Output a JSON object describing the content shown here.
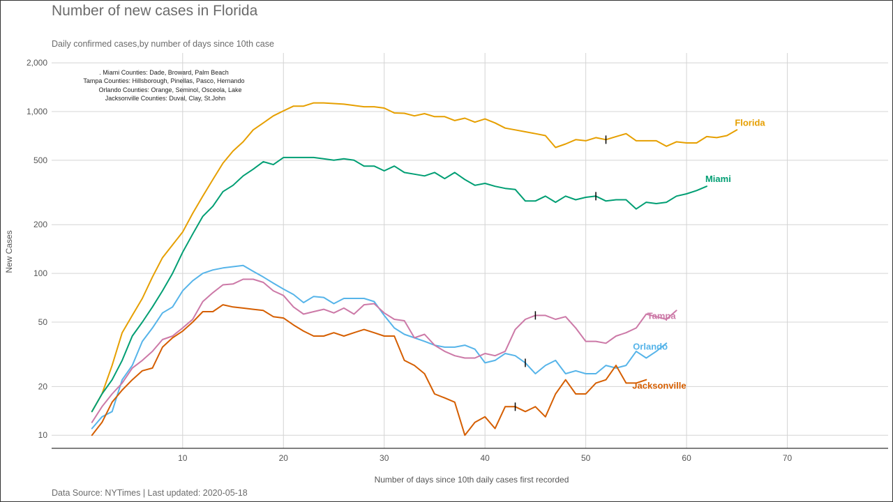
{
  "title": "Number of new cases in Florida",
  "subtitle": "Daily confirmed cases,by number of days since 10th case",
  "caption": "Data Source: NYTimes   |  Last updated: 2020-05-18",
  "colors": {
    "florida": "#E69F00",
    "miami": "#009E73",
    "orlando": "#56B4E9",
    "tampa": "#CC79A7",
    "jacksonville": "#D55E00",
    "grid": "#d4d4d4",
    "marker": "#000000"
  },
  "notes": [
    ".    Miami Counties: Dade, Broward, Palm Beach",
    "Tampa Counties: Hillsborough, Pinellas, Pasco, Hernando",
    "Orlando Counties: Orange, Seminol, Osceola, Lake",
    "Jacksonville Counties: Duval, Clay, St.John"
  ],
  "chart_data": {
    "type": "line",
    "xlabel": "Number of days since 10th daily cases first recorded",
    "ylabel": "New Cases",
    "y_scale": "log",
    "xlim": [
      -3,
      80
    ],
    "ylim": [
      8.3,
      2300
    ],
    "x_ticks": [
      10,
      20,
      30,
      40,
      50,
      60,
      70
    ],
    "y_ticks": [
      10,
      20,
      50,
      100,
      200,
      500,
      1000,
      2000
    ],
    "y_tick_labels": [
      "10",
      "20",
      "50",
      "100",
      "200",
      "500",
      "1,000",
      "2,000"
    ],
    "grid": true,
    "legend": "direct labels at line ends",
    "series": [
      {
        "name": "Florida",
        "color_key": "florida",
        "x": [
          1,
          2,
          3,
          4,
          5,
          6,
          7,
          8,
          9,
          10,
          11,
          12,
          13,
          14,
          15,
          16,
          17,
          18,
          19,
          20,
          21,
          22,
          23,
          24,
          25,
          26,
          27,
          28,
          29,
          30,
          31,
          32,
          33,
          34,
          35,
          36,
          37,
          38,
          39,
          40,
          41,
          42,
          43,
          44,
          45,
          46,
          47,
          48,
          49,
          50,
          51,
          52,
          53,
          54,
          55,
          56,
          57,
          58,
          59,
          60,
          61,
          62,
          63,
          64,
          65
        ],
        "y": [
          14,
          18,
          27,
          43,
          55,
          70,
          95,
          125,
          150,
          180,
          235,
          300,
          380,
          480,
          570,
          650,
          770,
          850,
          940,
          1010,
          1080,
          1080,
          1130,
          1130,
          1120,
          1110,
          1090,
          1070,
          1070,
          1050,
          980,
          975,
          940,
          970,
          930,
          930,
          880,
          910,
          860,
          900,
          850,
          790,
          770,
          750,
          730,
          710,
          600,
          630,
          670,
          660,
          690,
          670,
          700,
          730,
          660,
          660,
          660,
          610,
          650,
          640,
          640,
          700,
          690,
          710,
          770
        ],
        "marker_x": 52
      },
      {
        "name": "Miami",
        "color_key": "miami",
        "x": [
          1,
          2,
          3,
          4,
          5,
          6,
          7,
          8,
          9,
          10,
          11,
          12,
          13,
          14,
          15,
          16,
          17,
          18,
          19,
          20,
          21,
          22,
          23,
          24,
          25,
          26,
          27,
          28,
          29,
          30,
          31,
          32,
          33,
          34,
          35,
          36,
          37,
          38,
          39,
          40,
          41,
          42,
          43,
          44,
          45,
          46,
          47,
          48,
          49,
          50,
          51,
          52,
          53,
          54,
          55,
          56,
          57,
          58,
          59,
          60,
          61,
          62
        ],
        "y": [
          14,
          18,
          22,
          29,
          41,
          50,
          62,
          78,
          100,
          135,
          175,
          225,
          260,
          320,
          350,
          400,
          440,
          490,
          470,
          520,
          520,
          520,
          520,
          510,
          500,
          510,
          500,
          460,
          460,
          430,
          460,
          420,
          410,
          400,
          420,
          385,
          420,
          380,
          350,
          360,
          345,
          335,
          330,
          280,
          280,
          300,
          275,
          300,
          285,
          295,
          300,
          280,
          285,
          285,
          250,
          275,
          270,
          275,
          300,
          310,
          325,
          345
        ],
        "marker_x": 51
      },
      {
        "name": "Orlando",
        "color_key": "orlando",
        "x": [
          1,
          2,
          3,
          4,
          5,
          6,
          7,
          8,
          9,
          10,
          11,
          12,
          13,
          14,
          15,
          16,
          17,
          18,
          19,
          20,
          21,
          22,
          23,
          24,
          25,
          26,
          27,
          28,
          29,
          30,
          31,
          32,
          33,
          34,
          35,
          36,
          37,
          38,
          39,
          40,
          41,
          42,
          43,
          44,
          45,
          46,
          47,
          48,
          49,
          50,
          51,
          52,
          53,
          54,
          55,
          56,
          57,
          58
        ],
        "y": [
          11,
          13,
          14,
          22,
          27,
          38,
          46,
          57,
          62,
          78,
          90,
          100,
          105,
          108,
          110,
          112,
          103,
          95,
          87,
          80,
          74,
          66,
          72,
          71,
          65,
          70,
          70,
          70,
          67,
          55,
          46,
          42,
          40,
          38,
          36,
          35,
          35,
          36,
          34,
          28,
          29,
          32,
          31,
          28,
          24,
          27,
          29,
          24,
          25,
          24,
          24,
          27,
          26,
          27,
          33,
          30,
          33,
          37
        ],
        "marker_x": 44
      },
      {
        "name": "Tampa",
        "color_key": "tampa",
        "x": [
          1,
          2,
          3,
          4,
          5,
          6,
          7,
          8,
          9,
          10,
          11,
          12,
          13,
          14,
          15,
          16,
          17,
          18,
          19,
          20,
          21,
          22,
          23,
          24,
          25,
          26,
          27,
          28,
          29,
          30,
          31,
          32,
          33,
          34,
          35,
          36,
          37,
          38,
          39,
          40,
          41,
          42,
          43,
          44,
          45,
          46,
          47,
          48,
          49,
          50,
          51,
          52,
          53,
          54,
          55,
          56,
          57,
          58,
          59
        ],
        "y": [
          12,
          15,
          18,
          21,
          26,
          29,
          33,
          39,
          41,
          46,
          52,
          67,
          76,
          85,
          86,
          92,
          92,
          88,
          78,
          73,
          62,
          56,
          58,
          60,
          57,
          61,
          56,
          64,
          65,
          57,
          52,
          51,
          40,
          42,
          36,
          33,
          31,
          30,
          30,
          32,
          31,
          33,
          45,
          52,
          55,
          55,
          52,
          54,
          46,
          38,
          38,
          37,
          41,
          43,
          46,
          56,
          54,
          52,
          59
        ],
        "marker_x": 45
      },
      {
        "name": "Jacksonville",
        "color_key": "jacksonville",
        "x": [
          1,
          2,
          3,
          4,
          5,
          6,
          7,
          8,
          9,
          10,
          11,
          12,
          13,
          14,
          15,
          16,
          17,
          18,
          19,
          20,
          21,
          22,
          23,
          24,
          25,
          26,
          27,
          28,
          29,
          30,
          31,
          32,
          33,
          34,
          35,
          36,
          37,
          38,
          39,
          40,
          41,
          42,
          43,
          44,
          45,
          46,
          47,
          48,
          49,
          50,
          51,
          52,
          53,
          54,
          55,
          56
        ],
        "y": [
          10,
          12,
          16,
          19,
          22,
          25,
          26,
          35,
          40,
          44,
          50,
          58,
          58,
          64,
          62,
          61,
          60,
          59,
          54,
          53,
          48,
          44,
          41,
          41,
          43,
          41,
          43,
          45,
          43,
          41,
          41,
          29,
          27,
          24,
          18,
          17,
          16,
          10,
          12,
          13,
          11,
          15,
          15,
          14,
          15,
          13,
          18,
          22,
          18,
          18,
          21,
          22,
          27,
          21,
          21,
          22
        ],
        "marker_x": 43
      }
    ]
  }
}
